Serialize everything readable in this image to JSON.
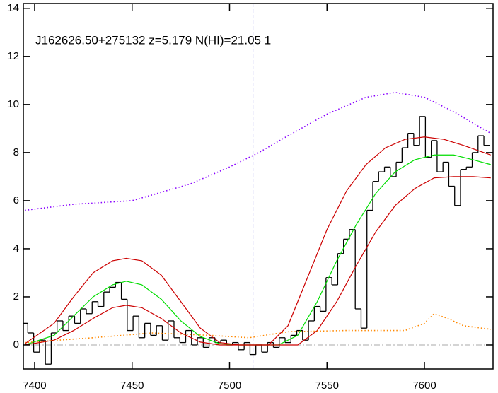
{
  "chart_data": {
    "type": "line",
    "annotation": "J162626.50+275132 z=5.179 N(HI)=21.05 1",
    "xlim": [
      7394.2,
      7635.2
    ],
    "ylim": [
      -1,
      14.2
    ],
    "xticks": [
      7400,
      7450,
      7500,
      7550,
      7600
    ],
    "yticks": [
      0,
      2,
      4,
      6,
      8,
      10,
      12,
      14
    ],
    "series": [
      {
        "color": "#000000",
        "style": "steps",
        "x": [
          7395,
          7398,
          7401,
          7404,
          7407,
          7410,
          7413,
          7416,
          7419,
          7422,
          7425,
          7428,
          7431,
          7434,
          7437,
          7440,
          7443,
          7446,
          7449,
          7452,
          7455,
          7458,
          7461,
          7464,
          7467,
          7470,
          7473,
          7476,
          7479,
          7482,
          7485,
          7488,
          7491,
          7494,
          7497,
          7500,
          7503,
          7506,
          7509,
          7512,
          7515,
          7518,
          7521,
          7524,
          7527,
          7530,
          7533,
          7536,
          7539,
          7542,
          7545,
          7548,
          7551,
          7554,
          7557,
          7560,
          7563,
          7566,
          7569,
          7572,
          7575,
          7578,
          7581,
          7584,
          7587,
          7590,
          7593,
          7596,
          7599,
          7602,
          7605,
          7608,
          7611,
          7614,
          7617,
          7620,
          7623,
          7626,
          7629,
          7632
        ],
        "values": [
          0.9,
          0.5,
          -0.3,
          0.2,
          -0.8,
          0.5,
          1.0,
          0.6,
          1.2,
          0.9,
          1.5,
          1.3,
          1.8,
          1.6,
          2.2,
          2.4,
          2.6,
          1.9,
          0.6,
          1.2,
          0.3,
          0.9,
          0.4,
          0.8,
          0.2,
          1.0,
          0.3,
          0.1,
          0.6,
          0.0,
          0.3,
          -0.1,
          0.3,
          0.1,
          0.2,
          0.0,
          0.1,
          -0.2,
          0.1,
          -0.4,
          0.0,
          -0.3,
          0.1,
          -0.1,
          0.3,
          0.1,
          0.4,
          0.6,
          0.2,
          1.0,
          1.6,
          1.4,
          2.8,
          2.5,
          3.8,
          4.4,
          4.8,
          1.5,
          0.7,
          5.6,
          6.8,
          7.2,
          7.4,
          7.0,
          7.6,
          8.2,
          8.8,
          8.3,
          9.5,
          7.8,
          8.5,
          7.2,
          7.6,
          6.6,
          5.8,
          7.3,
          7.4,
          8.0,
          8.7,
          8.3
        ]
      },
      {
        "color": "#00dd00",
        "style": "solid",
        "x": [
          7395,
          7410,
          7420,
          7430,
          7440,
          7447,
          7455,
          7465,
          7475,
          7485,
          7495,
          7505,
          7525,
          7535,
          7545,
          7555,
          7565,
          7575,
          7585,
          7595,
          7605,
          7615,
          7625,
          7634
        ],
        "values": [
          0,
          0.4,
          1.2,
          2.0,
          2.5,
          2.65,
          2.5,
          1.9,
          1.0,
          0.35,
          0.05,
          0,
          0,
          0.4,
          1.8,
          3.5,
          5.0,
          6.3,
          7.2,
          7.7,
          7.9,
          7.9,
          7.7,
          7.5
        ]
      },
      {
        "color": "#cc0000",
        "style": "solid",
        "x": [
          7395,
          7410,
          7420,
          7430,
          7440,
          7447,
          7455,
          7465,
          7475,
          7485,
          7495,
          7505,
          7520,
          7530,
          7540,
          7550,
          7560,
          7570,
          7580,
          7590,
          7600,
          7610,
          7620,
          7634
        ],
        "values": [
          0.05,
          0.9,
          2.0,
          3.0,
          3.5,
          3.6,
          3.5,
          2.9,
          1.8,
          0.7,
          0.1,
          0,
          0,
          0.8,
          2.8,
          4.8,
          6.4,
          7.5,
          8.2,
          8.55,
          8.65,
          8.55,
          8.3,
          7.9
        ]
      },
      {
        "color": "#cc0000",
        "style": "solid",
        "x": [
          7395,
          7410,
          7420,
          7430,
          7440,
          7447,
          7455,
          7465,
          7475,
          7485,
          7495,
          7535,
          7545,
          7555,
          7565,
          7575,
          7585,
          7595,
          7605,
          7615,
          7625,
          7634
        ],
        "values": [
          0,
          0.2,
          0.6,
          1.1,
          1.55,
          1.65,
          1.55,
          1.1,
          0.5,
          0.12,
          0,
          0,
          0.6,
          1.8,
          3.3,
          4.7,
          5.8,
          6.5,
          6.95,
          7.0,
          7.0,
          6.95
        ]
      },
      {
        "color": "#8800ff",
        "style": "dotted",
        "x": [
          7395,
          7420,
          7450,
          7480,
          7500,
          7515,
          7530,
          7550,
          7570,
          7585,
          7600,
          7615,
          7634
        ],
        "values": [
          5.6,
          5.85,
          6.0,
          6.7,
          7.4,
          8.0,
          8.7,
          9.6,
          10.3,
          10.5,
          10.3,
          9.7,
          8.8
        ]
      },
      {
        "color": "#ff8800",
        "style": "dotted",
        "x": [
          7395,
          7430,
          7460,
          7490,
          7510,
          7530,
          7560,
          7590,
          7600,
          7605,
          7612,
          7620,
          7634
        ],
        "values": [
          0.1,
          0.3,
          0.5,
          0.4,
          0.3,
          0.55,
          0.6,
          0.6,
          0.9,
          1.3,
          1.1,
          0.8,
          0.65
        ]
      }
    ],
    "reference_lines": [
      {
        "axis": "y",
        "value": 0,
        "color": "#aaaaaa",
        "style": "dashdot"
      },
      {
        "axis": "x",
        "value": 7512,
        "color": "#0000cc",
        "style": "dashed"
      }
    ]
  }
}
